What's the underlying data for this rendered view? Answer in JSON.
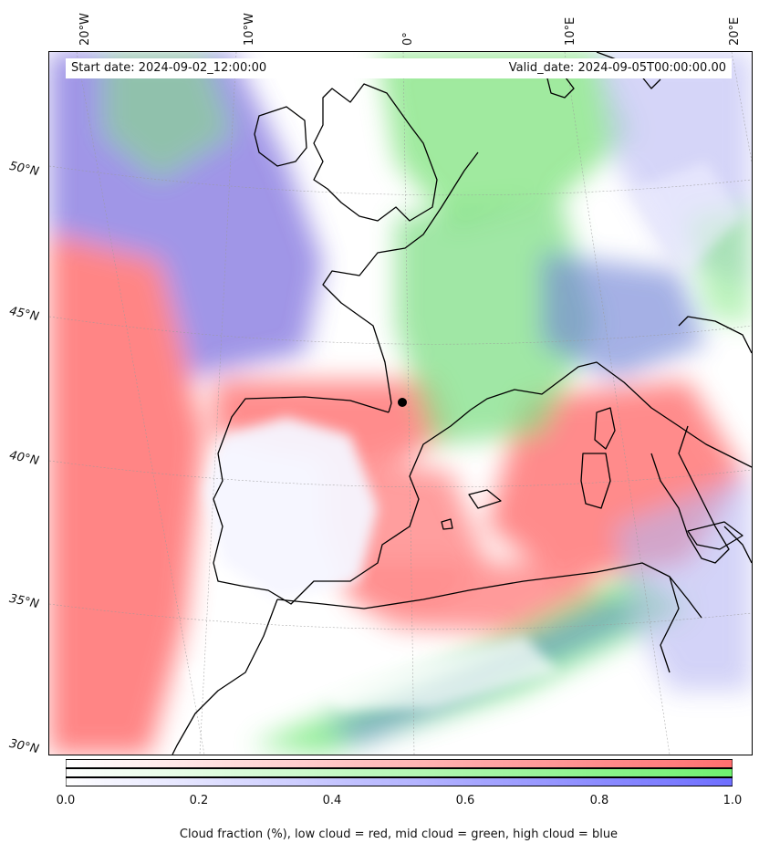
{
  "header": {
    "start_date": "Start date: 2024-09-02_12:00:00",
    "valid_date": "Valid_date: 2024-09-05T00:00:00.00"
  },
  "axes": {
    "longitude_labels": [
      "20°W",
      "10°W",
      "0°",
      "10°E",
      "20°E"
    ],
    "latitude_labels": [
      "50°N",
      "45°N",
      "40°N",
      "35°N",
      "30°N"
    ]
  },
  "legend": {
    "caption": "Cloud fraction (%), low cloud = red, mid cloud = green, high cloud = blue",
    "ticks": [
      "0.0",
      "0.2",
      "0.4",
      "0.6",
      "0.8",
      "1.0"
    ],
    "bars": [
      {
        "layer": "low cloud",
        "color": "#ff6f6f"
      },
      {
        "layer": "mid cloud",
        "color": "#6ff06f"
      },
      {
        "layer": "high cloud",
        "color": "#6f6fff"
      }
    ]
  },
  "colors": {
    "low": "#ff7070",
    "mid": "#70ee70",
    "high": "#5a68e0",
    "coast": "#000000",
    "grid": "#9a9a9a"
  }
}
